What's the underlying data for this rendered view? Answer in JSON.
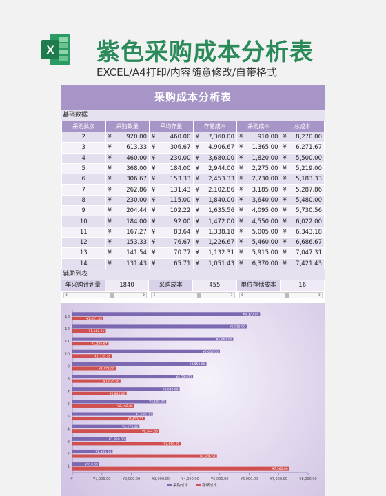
{
  "promo": {
    "title": "紫色采购成本分析表",
    "subtitle": "EXCEL/A4打印/内容随意修改/自带格式",
    "logo_letter": "X",
    "logo_color": "#1f7a4c"
  },
  "sheet": {
    "title": "采购成本分析表",
    "section_basic": "基础数据",
    "headers": [
      "采购批次",
      "采购数量",
      "平均存量",
      "存储成本",
      "采购成本",
      "总成本"
    ],
    "currency": "¥",
    "rows": [
      {
        "batch": "2",
        "qty": "920.00",
        "avg": "460.00",
        "storage": "7,360.00",
        "purchase": "910.00",
        "total": "8,270.00"
      },
      {
        "batch": "3",
        "qty": "613.33",
        "avg": "306.67",
        "storage": "4,906.67",
        "purchase": "1,365.00",
        "total": "6,271.67"
      },
      {
        "batch": "4",
        "qty": "460.00",
        "avg": "230.00",
        "storage": "3,680.00",
        "purchase": "1,820.00",
        "total": "5,500.00"
      },
      {
        "batch": "5",
        "qty": "368.00",
        "avg": "184.00",
        "storage": "2,944.00",
        "purchase": "2,275.00",
        "total": "5,219.00"
      },
      {
        "batch": "6",
        "qty": "306.67",
        "avg": "153.33",
        "storage": "2,453.33",
        "purchase": "2,730.00",
        "total": "5,183.33"
      },
      {
        "batch": "7",
        "qty": "262.86",
        "avg": "131.43",
        "storage": "2,102.86",
        "purchase": "3,185.00",
        "total": "5,287.86"
      },
      {
        "batch": "8",
        "qty": "230.00",
        "avg": "115.00",
        "storage": "1,840.00",
        "purchase": "3,640.00",
        "total": "5,480.00"
      },
      {
        "batch": "9",
        "qty": "204.44",
        "avg": "102.22",
        "storage": "1,635.56",
        "purchase": "4,095.00",
        "total": "5,730.56"
      },
      {
        "batch": "10",
        "qty": "184.00",
        "avg": "92.00",
        "storage": "1,472.00",
        "purchase": "4,550.00",
        "total": "6,022.00"
      },
      {
        "batch": "11",
        "qty": "167.27",
        "avg": "83.64",
        "storage": "1,338.18",
        "purchase": "5,005.00",
        "total": "6,343.18"
      },
      {
        "batch": "12",
        "qty": "153.33",
        "avg": "76.67",
        "storage": "1,226.67",
        "purchase": "5,460.00",
        "total": "6,686.67"
      },
      {
        "batch": "13",
        "qty": "141.54",
        "avg": "70.77",
        "storage": "1,132.31",
        "purchase": "5,915.00",
        "total": "7,047.31"
      },
      {
        "batch": "14",
        "qty": "131.43",
        "avg": "65.71",
        "storage": "1,051.43",
        "purchase": "6,370.00",
        "total": "7,421.43"
      }
    ],
    "section_aux": "辅助列表",
    "aux": [
      {
        "label": "年采购计划量",
        "value": "1840"
      },
      {
        "label": "采购成本",
        "value": "455"
      },
      {
        "label": "单位存储成本",
        "value": "16"
      }
    ]
  },
  "chart_data": {
    "type": "bar",
    "orientation": "horizontal",
    "categories": [
      "1",
      "2",
      "3",
      "4",
      "5",
      "6",
      "7",
      "8",
      "9",
      "10",
      "11",
      "12",
      "13"
    ],
    "series": [
      {
        "name": "采购成本",
        "color": "#7b68b0",
        "values": [
          910,
          1365,
          1820,
          2275,
          2730,
          3185,
          3640,
          4095,
          4550,
          5005,
          5460,
          5915,
          6370
        ],
        "labels": [
          "¥910.00",
          "¥1,365.00",
          "¥1,820.00",
          "¥2,275.00",
          "¥2,730.00",
          "¥3,185.00",
          "¥3,640.00",
          "¥4,095.00",
          "¥4,550.00",
          "¥5,005.00",
          "¥5,460.00",
          "¥5,915.00",
          "¥6,370.00"
        ]
      },
      {
        "name": "存储成本",
        "color": "#d0504f",
        "values": [
          7360,
          4906.67,
          3680,
          2944,
          2453.33,
          2102.86,
          1840,
          1635.56,
          1472,
          1338.18,
          1226.67,
          1132.31,
          1051.43
        ],
        "labels": [
          "¥7,360.00",
          "¥4,906.67",
          "¥3,680.00",
          "¥2,944.00",
          "¥2,453.33",
          "¥2,102.86",
          "¥1,840.00",
          "¥1,635.56",
          "¥1,472.00",
          "¥1,338.18",
          "¥1,226.67",
          "¥1,132.31",
          "¥1,051.43"
        ]
      }
    ],
    "xlim": [
      0,
      8000
    ],
    "x_ticks": [
      "¥-",
      "¥1,000.00",
      "¥2,000.00",
      "¥3,000.00",
      "¥4,000.00",
      "¥5,000.00",
      "¥6,000.00",
      "¥7,000.00",
      "¥8,000.00"
    ],
    "legend_position": "bottom",
    "grid": false
  }
}
